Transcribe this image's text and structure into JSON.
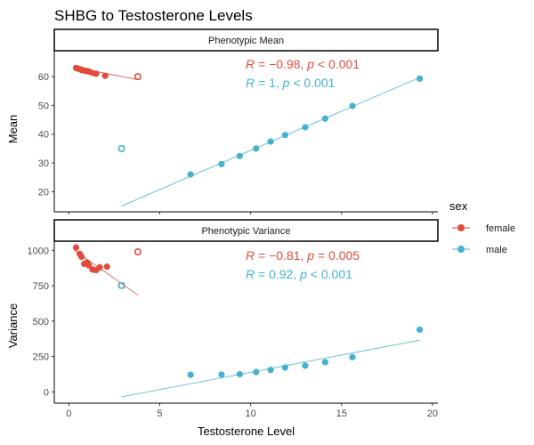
{
  "title": "SHBG to Testosterone Levels",
  "colors": {
    "female": "#E24B3B",
    "male": "#46B2CF",
    "strip_border": "#000000",
    "axis": "#333333",
    "tick_text": "#4d4d4d"
  },
  "legend": {
    "title": "sex",
    "position": "right",
    "items": [
      {
        "label": "female",
        "color_key": "female"
      },
      {
        "label": "male",
        "color_key": "male"
      }
    ]
  },
  "xlabel": "Testosterone Level",
  "chart_data": [
    {
      "type": "scatter",
      "panel": "Phenotypic Mean",
      "ylabel": "Mean",
      "xlim": [
        -0.8,
        20.3
      ],
      "ylim": [
        13,
        69
      ],
      "xticks": [
        0,
        5,
        10,
        15,
        20
      ],
      "yticks": [
        20,
        30,
        40,
        50,
        60
      ],
      "grid": false,
      "series": [
        {
          "name": "female",
          "points": [
            [
              0.4,
              63.0
            ],
            [
              0.5,
              62.8
            ],
            [
              0.6,
              62.6
            ],
            [
              0.7,
              62.3
            ],
            [
              0.8,
              62.2
            ],
            [
              0.9,
              62.0
            ],
            [
              1.0,
              61.9
            ],
            [
              1.1,
              61.8
            ],
            [
              1.3,
              61.3
            ],
            [
              1.5,
              61.0
            ],
            [
              2.0,
              60.3
            ]
          ],
          "open_points": [
            [
              3.8,
              60.0
            ]
          ],
          "fit": [
            [
              0.3,
              63.3
            ],
            [
              3.8,
              58.9
            ]
          ],
          "annotation": {
            "r_label": "R",
            "r_value": " = −0.98, ",
            "p_label": "p",
            "p_value": " < 0.001"
          }
        },
        {
          "name": "male",
          "points": [
            [
              6.7,
              26.0
            ],
            [
              8.4,
              29.6
            ],
            [
              9.4,
              32.4
            ],
            [
              10.3,
              35.0
            ],
            [
              11.1,
              37.4
            ],
            [
              11.9,
              39.7
            ],
            [
              13.0,
              42.4
            ],
            [
              14.1,
              45.4
            ],
            [
              15.6,
              49.8
            ],
            [
              19.3,
              59.3
            ]
          ],
          "open_points": [
            [
              2.9,
              35.0
            ]
          ],
          "fit": [
            [
              2.9,
              15.0
            ],
            [
              19.3,
              59.7
            ]
          ],
          "annotation": {
            "r_label": "R",
            "r_value": " = 1, ",
            "p_label": "p",
            "p_value": " < 0.001"
          }
        }
      ]
    },
    {
      "type": "scatter",
      "panel": "Phenotypic Variance",
      "ylabel": "Variance",
      "xlim": [
        -0.8,
        20.3
      ],
      "ylim": [
        -80,
        1065
      ],
      "xticks": [
        0,
        5,
        10,
        15,
        20
      ],
      "yticks": [
        0,
        250,
        500,
        750,
        1000
      ],
      "grid": false,
      "series": [
        {
          "name": "female",
          "points": [
            [
              0.4,
              1020
            ],
            [
              0.6,
              975
            ],
            [
              0.7,
              955
            ],
            [
              0.85,
              905
            ],
            [
              1.0,
              915
            ],
            [
              1.1,
              895
            ],
            [
              1.3,
              865
            ],
            [
              1.5,
              860
            ],
            [
              1.7,
              880
            ],
            [
              2.1,
              885
            ]
          ],
          "open_points": [
            [
              3.8,
              990
            ],
            [
              2.9,
              752
            ]
          ],
          "fit": [
            [
              0.3,
              1000
            ],
            [
              3.8,
              685
            ]
          ],
          "annotation": {
            "r_label": "R",
            "r_value": " = −0.81, ",
            "p_label": "p",
            "p_value": " = 0.005"
          }
        },
        {
          "name": "male",
          "points": [
            [
              6.7,
              120
            ],
            [
              8.4,
              122
            ],
            [
              9.4,
              125
            ],
            [
              10.3,
              140
            ],
            [
              11.1,
              155
            ],
            [
              11.9,
              172
            ],
            [
              13.0,
              185
            ],
            [
              14.1,
              210
            ],
            [
              15.6,
              245
            ],
            [
              19.3,
              440
            ]
          ],
          "open_points": [
            [
              2.9,
              752
            ]
          ],
          "fit": [
            [
              2.9,
              -35
            ],
            [
              19.3,
              365
            ]
          ],
          "annotation": {
            "r_label": "R",
            "r_value": " = 0.92, ",
            "p_label": "p",
            "p_value": " < 0.001"
          }
        }
      ]
    }
  ]
}
